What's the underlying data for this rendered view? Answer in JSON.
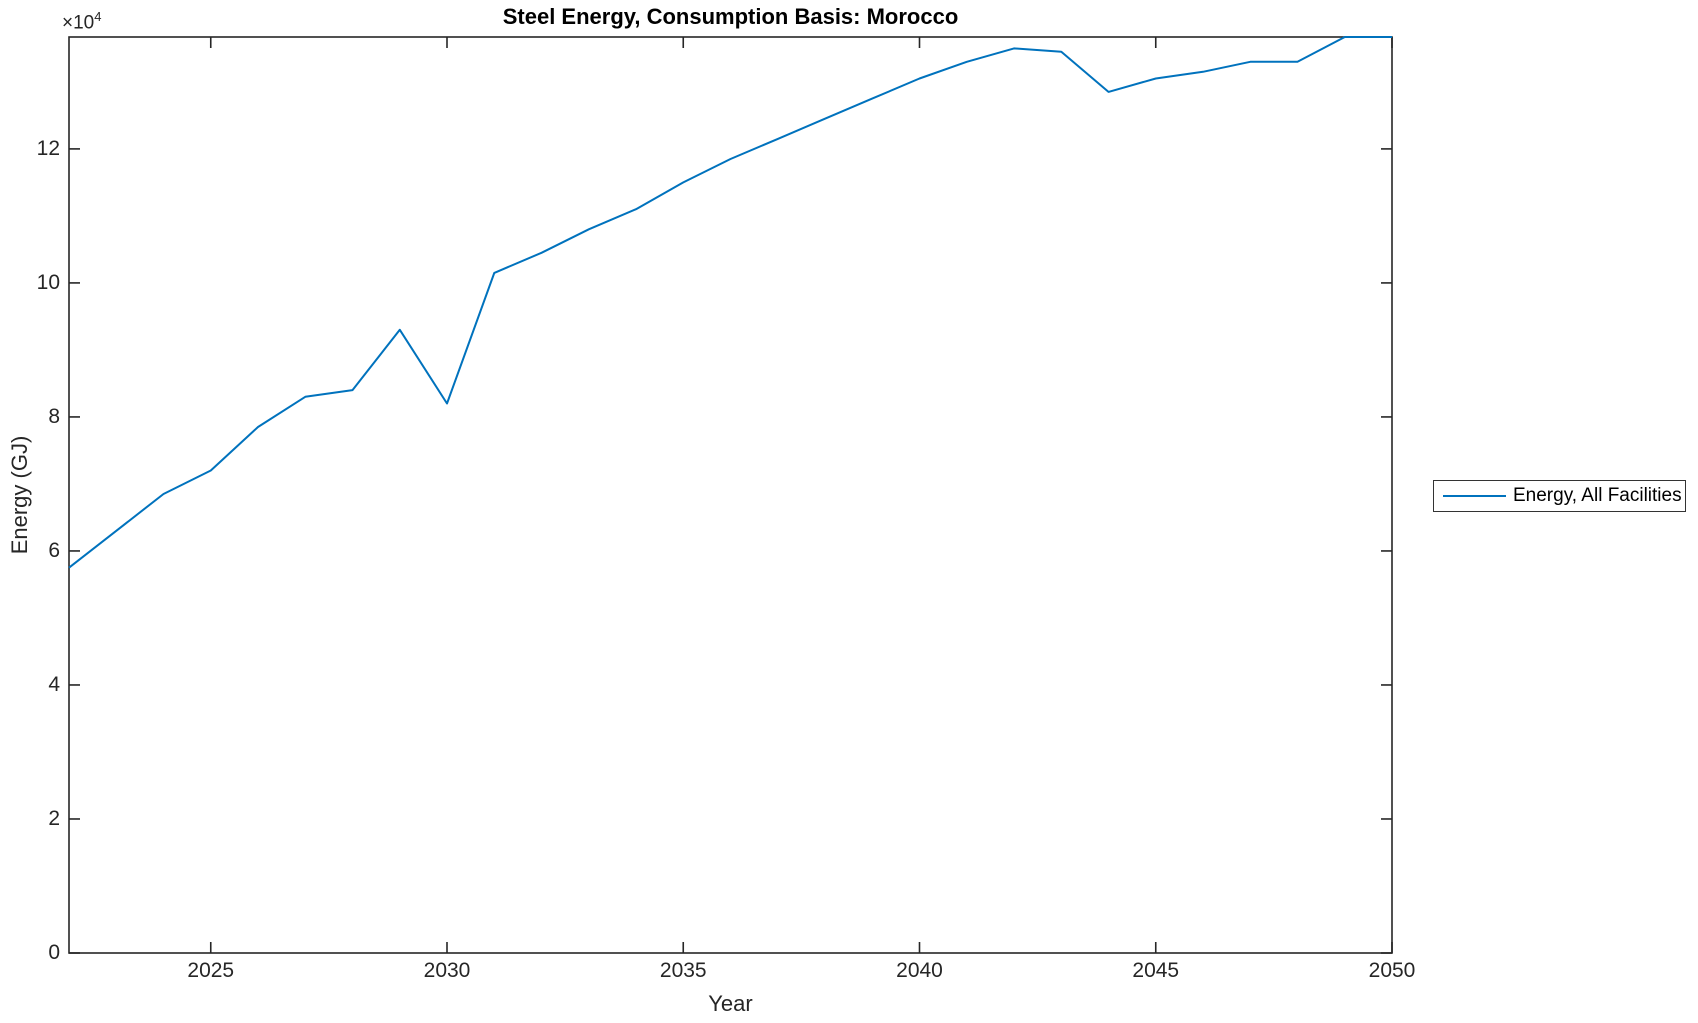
{
  "figure": {
    "y_axis_exponent_base": "×10",
    "y_axis_exponent_power": "4"
  },
  "chart_data": {
    "type": "line",
    "title": "Steel Energy, Consumption Basis: Morocco",
    "xlabel": "Year",
    "ylabel": "Energy (GJ)",
    "y_unit_multiplier": "1e4",
    "xlim": [
      2022,
      2050
    ],
    "ylim": [
      0,
      13.67
    ],
    "x_ticks": [
      2025,
      2030,
      2035,
      2040,
      2045,
      2050
    ],
    "y_ticks": [
      0,
      2,
      4,
      6,
      8,
      10,
      12
    ],
    "grid": false,
    "box": true,
    "legend_position": "eastoutside",
    "axis_color": "#262626",
    "series": [
      {
        "name": "Energy, All Facilities",
        "color": "#0072BD",
        "x": [
          2022,
          2023,
          2024,
          2025,
          2026,
          2027,
          2028,
          2029,
          2030,
          2031,
          2032,
          2033,
          2034,
          2035,
          2036,
          2037,
          2038,
          2039,
          2040,
          2041,
          2042,
          2043,
          2044,
          2045,
          2046,
          2047,
          2048,
          2049,
          2050
        ],
        "values_1e4_GJ": [
          5.75,
          6.3,
          6.85,
          7.2,
          7.85,
          8.3,
          8.4,
          9.3,
          8.2,
          10.15,
          10.45,
          10.8,
          11.1,
          11.5,
          11.85,
          12.15,
          12.45,
          12.75,
          13.05,
          13.3,
          13.5,
          13.45,
          12.85,
          13.05,
          13.15,
          13.3,
          13.3,
          13.67,
          13.67
        ]
      }
    ]
  }
}
